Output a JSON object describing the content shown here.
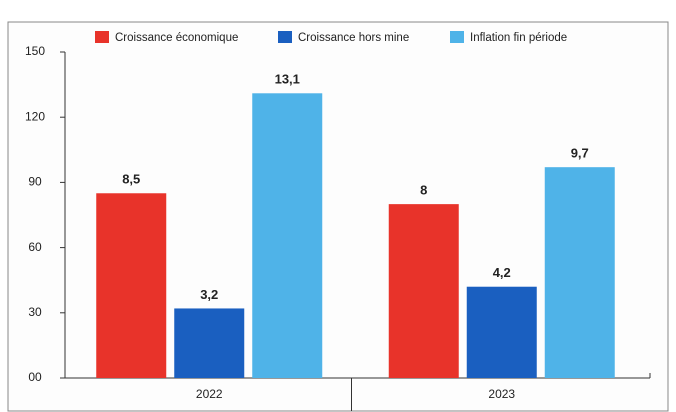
{
  "chart_data": {
    "type": "bar",
    "categories": [
      "2022",
      "2023"
    ],
    "series": [
      {
        "name": "Croissance économique",
        "color": "#e8332a",
        "values": [
          85,
          80
        ],
        "value_labels": [
          "8,5",
          "8"
        ]
      },
      {
        "name": "Croissance hors mine",
        "color": "#1a5fc0",
        "values": [
          32,
          42
        ],
        "value_labels": [
          "3,2",
          "4,2"
        ]
      },
      {
        "name": "Inflation fin période",
        "color": "#4fb3e8",
        "values": [
          131,
          97
        ],
        "value_labels": [
          "13,1",
          "9,7"
        ]
      }
    ],
    "ylim": [
      0,
      150
    ],
    "yticks": [
      {
        "value": 0,
        "label": "00"
      },
      30,
      60,
      90,
      120,
      150
    ],
    "legend": "top"
  }
}
